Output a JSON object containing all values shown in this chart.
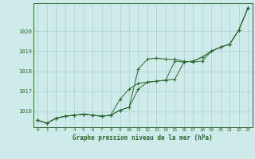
{
  "title": "Graphe pression niveau de la mer (hPa)",
  "bg_color": "#ceeaea",
  "line_color": "#2d6a2d",
  "grid_color": "#aacfcf",
  "axis_color": "#2d6a2d",
  "tick_label_color": "#2d6a2d",
  "title_color": "#2d6a2d",
  "xlim": [
    -0.5,
    23.5
  ],
  "ylim": [
    1015.2,
    1021.4
  ],
  "yticks": [
    1016,
    1017,
    1018,
    1019,
    1020
  ],
  "xticks": [
    0,
    1,
    2,
    3,
    4,
    5,
    6,
    7,
    8,
    9,
    10,
    11,
    12,
    13,
    14,
    15,
    16,
    17,
    18,
    19,
    20,
    21,
    22,
    23
  ],
  "series1": [
    1015.55,
    1015.4,
    1015.65,
    1015.75,
    1015.8,
    1015.85,
    1015.8,
    1015.75,
    1015.8,
    1016.05,
    1016.2,
    1018.1,
    1018.6,
    1018.65,
    1018.6,
    1018.6,
    1018.5,
    1018.45,
    1018.5,
    1019.0,
    1019.2,
    1019.35,
    1020.05,
    1021.15
  ],
  "series2": [
    1015.55,
    1015.4,
    1015.65,
    1015.75,
    1015.8,
    1015.85,
    1015.8,
    1015.75,
    1015.8,
    1016.6,
    1017.1,
    1017.4,
    1017.45,
    1017.5,
    1017.55,
    1018.5,
    1018.45,
    1018.5,
    1018.7,
    1019.0,
    1019.2,
    1019.35,
    1020.05,
    1021.15
  ],
  "series3": [
    1015.55,
    1015.4,
    1015.65,
    1015.75,
    1015.8,
    1015.85,
    1015.8,
    1015.75,
    1015.8,
    1016.05,
    1016.2,
    1017.1,
    1017.45,
    1017.5,
    1017.55,
    1017.6,
    1018.45,
    1018.5,
    1018.7,
    1019.0,
    1019.2,
    1019.35,
    1020.05,
    1021.15
  ]
}
